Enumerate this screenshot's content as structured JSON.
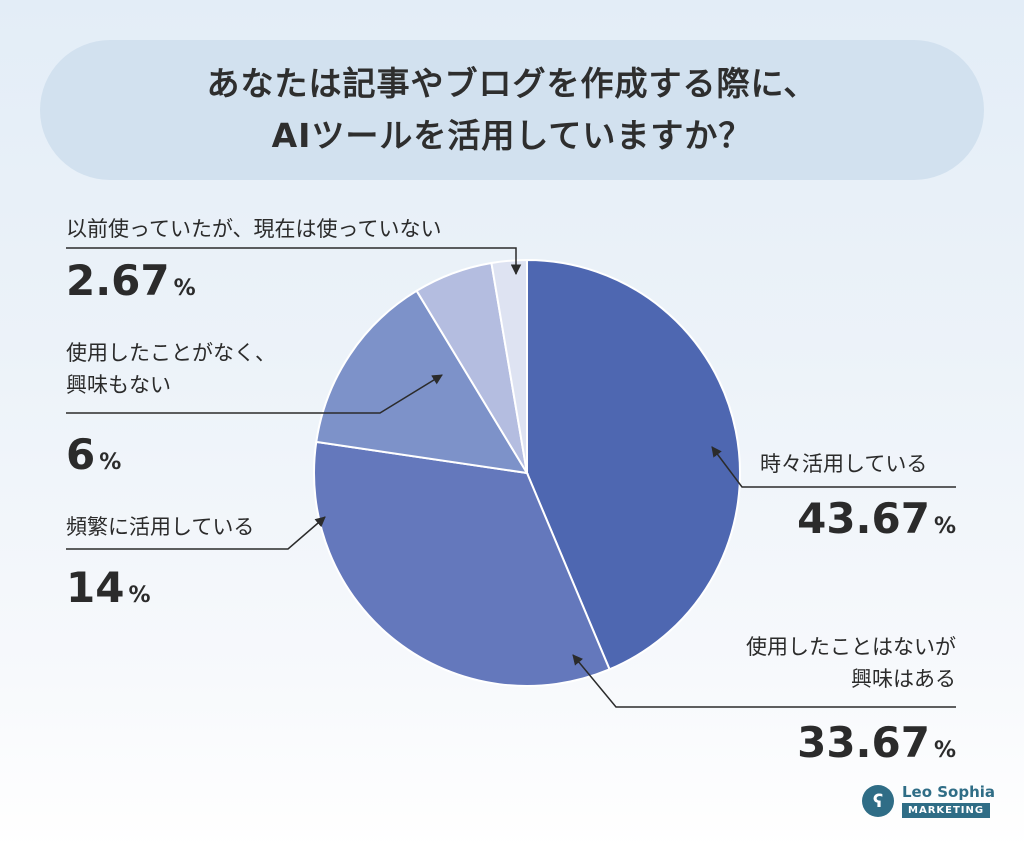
{
  "title": {
    "line1": "あなたは記事やブログを作成する際に、",
    "line2": "AIツールを活用していますか？"
  },
  "chart_data": {
    "type": "pie",
    "title": "あなたは記事やブログを作成する際に、AIツールを活用していますか？",
    "unit": "%",
    "start": "12 o'clock",
    "direction": "clockwise",
    "slices": [
      {
        "label_lines": [
          "時々活用している"
        ],
        "value": 43.67,
        "value_text": "43.67",
        "color": "#4e67b1"
      },
      {
        "label_lines": [
          "使用したことはないが",
          "興味はある"
        ],
        "value": 33.67,
        "value_text": "33.67",
        "color": "#6478bc"
      },
      {
        "label_lines": [
          "頻繁に活用している"
        ],
        "value": 14,
        "value_text": "14",
        "color": "#7d92c9"
      },
      {
        "label_lines": [
          "使用したことがなく、",
          "興味もない"
        ],
        "value": 6,
        "value_text": "6",
        "color": "#b4bde0"
      },
      {
        "label_lines": [
          "以前使っていたが、現在は使っていない"
        ],
        "value": 2.67,
        "value_text": "2.67",
        "color": "#dee3f2"
      }
    ]
  },
  "logo": {
    "name": "Leo Sophia",
    "sub": "MARKETING",
    "mark": "ʕ"
  }
}
